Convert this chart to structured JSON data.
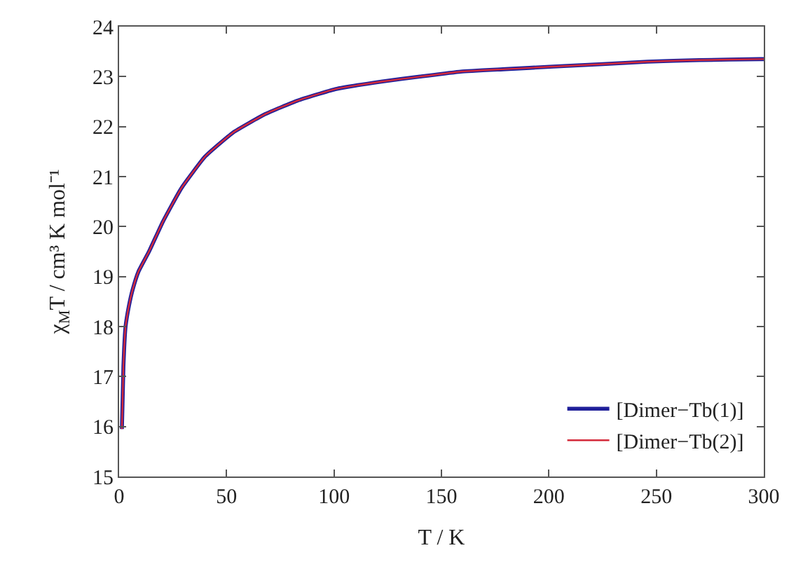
{
  "chart_data": {
    "type": "line",
    "xlabel": "T / K",
    "ylabel": "χ$_{M}$T / cm³ K mol⁻¹",
    "x": [
      1.3,
      2,
      3,
      4.5,
      6.3,
      9,
      13.9,
      20.4,
      29,
      40,
      53,
      68,
      83,
      100.6,
      122,
      140,
      159,
      180,
      202,
      225,
      246,
      270,
      298,
      300
    ],
    "series": [
      {
        "name": "[Dimer−Tb(1)]",
        "color": "#1f1f9a",
        "values": [
          15.95,
          17.2,
          18.0,
          18.4,
          18.74,
          19.1,
          19.5,
          20.1,
          20.77,
          21.4,
          21.88,
          22.25,
          22.52,
          22.75,
          22.9,
          23.0,
          23.1,
          23.15,
          23.2,
          23.25,
          23.3,
          23.33,
          23.35,
          23.35
        ]
      },
      {
        "name": "[Dimer−Tb(2)]",
        "color": "#d42a3a",
        "values": [
          15.95,
          17.2,
          18.0,
          18.4,
          18.74,
          19.1,
          19.5,
          20.1,
          20.77,
          21.4,
          21.88,
          22.25,
          22.52,
          22.75,
          22.9,
          23.0,
          23.1,
          23.15,
          23.2,
          23.25,
          23.3,
          23.33,
          23.35,
          23.35
        ]
      }
    ],
    "xlim": [
      0,
      300
    ],
    "xticks": [
      0,
      50,
      100,
      150,
      200,
      250,
      300
    ],
    "ylim": [
      15,
      24
    ],
    "yticks": [
      15,
      16,
      17,
      18,
      19,
      20,
      21,
      22,
      23,
      24
    ],
    "legend": "bottom right",
    "marker": "none",
    "line_style": "solid"
  }
}
